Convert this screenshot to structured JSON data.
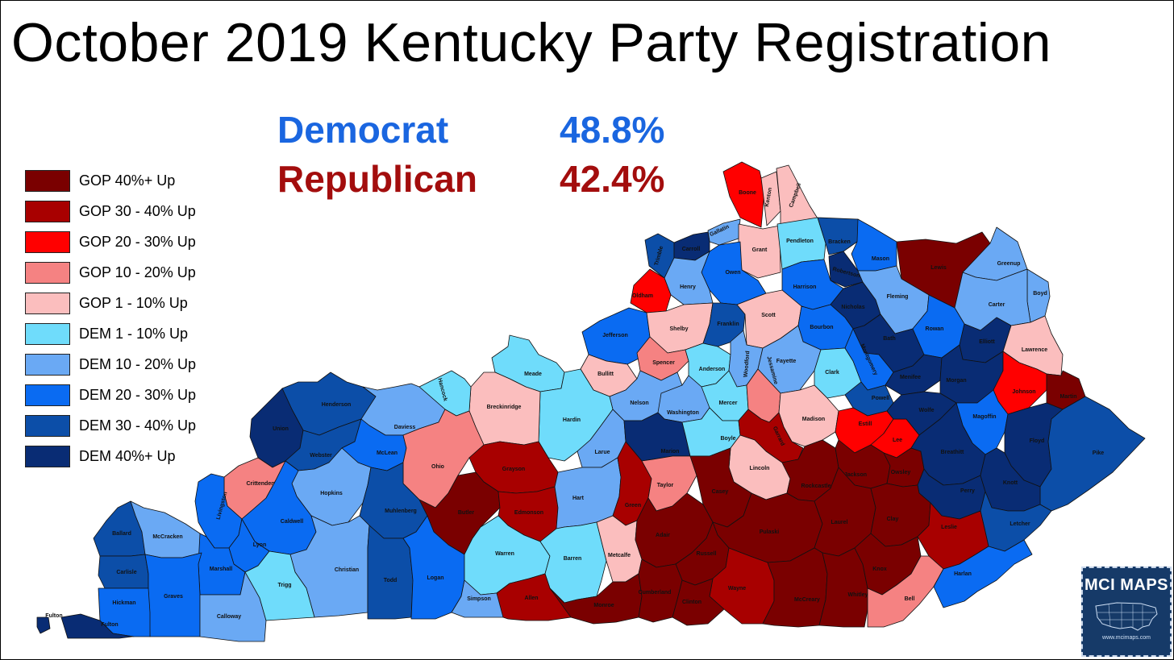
{
  "title": "October 2019 Kentucky Party Registration",
  "summary": [
    {
      "party": "Democrat",
      "percent": "48.8%"
    },
    {
      "party": "Republican",
      "percent": "42.4%"
    }
  ],
  "legend": [
    {
      "label": "GOP 40%+ Up",
      "color": "#7a0000"
    },
    {
      "label": "GOP 30 - 40% Up",
      "color": "#a80000"
    },
    {
      "label": "GOP 20 - 30% Up",
      "color": "#ff0000"
    },
    {
      "label": "GOP 10 - 20% Up",
      "color": "#f58282"
    },
    {
      "label": "GOP 1 - 10% Up",
      "color": "#fbbebe"
    },
    {
      "label": "DEM 1 - 10% Up",
      "color": "#6fdcfb"
    },
    {
      "label": "DEM 10 - 20% Up",
      "color": "#6aa9f4"
    },
    {
      "label": "DEM 20 - 30% Up",
      "color": "#0a6bf2"
    },
    {
      "label": "DEM 30 - 40% Up",
      "color": "#0c4ea8"
    },
    {
      "label": "DEM 40%+ Up",
      "color": "#092c74"
    }
  ],
  "counties": [
    {
      "name": "Boone",
      "bin": 2
    },
    {
      "name": "Kenton",
      "bin": 4
    },
    {
      "name": "Campbell",
      "bin": 4
    },
    {
      "name": "Gallatin",
      "bin": 6
    },
    {
      "name": "Trimble",
      "bin": 8
    },
    {
      "name": "Carroll",
      "bin": 9
    },
    {
      "name": "Grant",
      "bin": 4
    },
    {
      "name": "Pendleton",
      "bin": 5
    },
    {
      "name": "Bracken",
      "bin": 8
    },
    {
      "name": "Mason",
      "bin": 7
    },
    {
      "name": "Lewis",
      "bin": 0
    },
    {
      "name": "Greenup",
      "bin": 6
    },
    {
      "name": "Boyd",
      "bin": 6
    },
    {
      "name": "Owen",
      "bin": 7
    },
    {
      "name": "Henry",
      "bin": 6
    },
    {
      "name": "Oldham",
      "bin": 2
    },
    {
      "name": "Robertson",
      "bin": 9
    },
    {
      "name": "Harrison",
      "bin": 7
    },
    {
      "name": "Nicholas",
      "bin": 9
    },
    {
      "name": "Fleming",
      "bin": 6
    },
    {
      "name": "Carter",
      "bin": 6
    },
    {
      "name": "Jefferson",
      "bin": 7
    },
    {
      "name": "Shelby",
      "bin": 4
    },
    {
      "name": "Franklin",
      "bin": 8
    },
    {
      "name": "Scott",
      "bin": 4
    },
    {
      "name": "Bourbon",
      "bin": 7
    },
    {
      "name": "Bath",
      "bin": 9
    },
    {
      "name": "Rowan",
      "bin": 7
    },
    {
      "name": "Elliott",
      "bin": 9
    },
    {
      "name": "Lawrence",
      "bin": 4
    },
    {
      "name": "Spencer",
      "bin": 3
    },
    {
      "name": "Anderson",
      "bin": 5
    },
    {
      "name": "Woodford",
      "bin": 6
    },
    {
      "name": "Fayette",
      "bin": 6
    },
    {
      "name": "Clark",
      "bin": 5
    },
    {
      "name": "Montgomery",
      "bin": 7
    },
    {
      "name": "Menifee",
      "bin": 9
    },
    {
      "name": "Morgan",
      "bin": 9
    },
    {
      "name": "Johnson",
      "bin": 2
    },
    {
      "name": "Martin",
      "bin": 0
    },
    {
      "name": "Bullitt",
      "bin": 4
    },
    {
      "name": "Nelson",
      "bin": 6
    },
    {
      "name": "Washington",
      "bin": 6
    },
    {
      "name": "Mercer",
      "bin": 5
    },
    {
      "name": "Jessamine",
      "bin": 3
    },
    {
      "name": "Madison",
      "bin": 4
    },
    {
      "name": "Powell",
      "bin": 8
    },
    {
      "name": "Estill",
      "bin": 2
    },
    {
      "name": "Lee",
      "bin": 2
    },
    {
      "name": "Wolfe",
      "bin": 9
    },
    {
      "name": "Magoffin",
      "bin": 7
    },
    {
      "name": "Floyd",
      "bin": 9
    },
    {
      "name": "Pike",
      "bin": 8
    },
    {
      "name": "Meade",
      "bin": 5
    },
    {
      "name": "Hardin",
      "bin": 5
    },
    {
      "name": "Breckinridge",
      "bin": 4
    },
    {
      "name": "Hancock",
      "bin": 5
    },
    {
      "name": "Larue",
      "bin": 6
    },
    {
      "name": "Marion",
      "bin": 9
    },
    {
      "name": "Boyle",
      "bin": 5
    },
    {
      "name": "Garrard",
      "bin": 1
    },
    {
      "name": "Lincoln",
      "bin": 4
    },
    {
      "name": "Rockcastle",
      "bin": 0
    },
    {
      "name": "Jackson",
      "bin": 0
    },
    {
      "name": "Owsley",
      "bin": 0
    },
    {
      "name": "Breathitt",
      "bin": 9
    },
    {
      "name": "Perry",
      "bin": 9
    },
    {
      "name": "Knott",
      "bin": 9
    },
    {
      "name": "Letcher",
      "bin": 8
    },
    {
      "name": "Henderson",
      "bin": 8
    },
    {
      "name": "Union",
      "bin": 9
    },
    {
      "name": "Daviess",
      "bin": 6
    },
    {
      "name": "Webster",
      "bin": 8
    },
    {
      "name": "McLean",
      "bin": 7
    },
    {
      "name": "Ohio",
      "bin": 3
    },
    {
      "name": "Grayson",
      "bin": 1
    },
    {
      "name": "Crittenden",
      "bin": 3
    },
    {
      "name": "Hopkins",
      "bin": 6
    },
    {
      "name": "Muhlenberg",
      "bin": 8
    },
    {
      "name": "Butler",
      "bin": 0
    },
    {
      "name": "Edmonson",
      "bin": 1
    },
    {
      "name": "Hart",
      "bin": 6
    },
    {
      "name": "Green",
      "bin": 1
    },
    {
      "name": "Taylor",
      "bin": 3
    },
    {
      "name": "Casey",
      "bin": 0
    },
    {
      "name": "Pulaski",
      "bin": 0
    },
    {
      "name": "Laurel",
      "bin": 0
    },
    {
      "name": "Clay",
      "bin": 0
    },
    {
      "name": "Leslie",
      "bin": 1
    },
    {
      "name": "Livingston",
      "bin": 7
    },
    {
      "name": "Caldwell",
      "bin": 7
    },
    {
      "name": "Lyon",
      "bin": 7
    },
    {
      "name": "Christian",
      "bin": 6
    },
    {
      "name": "Todd",
      "bin": 8
    },
    {
      "name": "Logan",
      "bin": 7
    },
    {
      "name": "Warren",
      "bin": 5
    },
    {
      "name": "Barren",
      "bin": 5
    },
    {
      "name": "Metcalfe",
      "bin": 4
    },
    {
      "name": "Adair",
      "bin": 0
    },
    {
      "name": "Russell",
      "bin": 0
    },
    {
      "name": "Wayne",
      "bin": 1
    },
    {
      "name": "McCreary",
      "bin": 0
    },
    {
      "name": "Whitley",
      "bin": 0
    },
    {
      "name": "Knox",
      "bin": 0
    },
    {
      "name": "Bell",
      "bin": 3
    },
    {
      "name": "Harlan",
      "bin": 7
    },
    {
      "name": "Ballard",
      "bin": 8
    },
    {
      "name": "McCracken",
      "bin": 6
    },
    {
      "name": "Marshall",
      "bin": 7
    },
    {
      "name": "Carlisle",
      "bin": 8
    },
    {
      "name": "Graves",
      "bin": 7
    },
    {
      "name": "Hickman",
      "bin": 7
    },
    {
      "name": "Fulton",
      "bin": 9
    },
    {
      "name": "Fulton",
      "bin": 9
    },
    {
      "name": "Calloway",
      "bin": 6
    },
    {
      "name": "Trigg",
      "bin": 5
    },
    {
      "name": "Simpson",
      "bin": 6
    },
    {
      "name": "Allen",
      "bin": 1
    },
    {
      "name": "Monroe",
      "bin": 0
    },
    {
      "name": "Cumberland",
      "bin": 0
    },
    {
      "name": "Clinton",
      "bin": 0
    }
  ],
  "badge": {
    "brand": "MCI MAPS",
    "site": "www.mcimaps.com"
  }
}
